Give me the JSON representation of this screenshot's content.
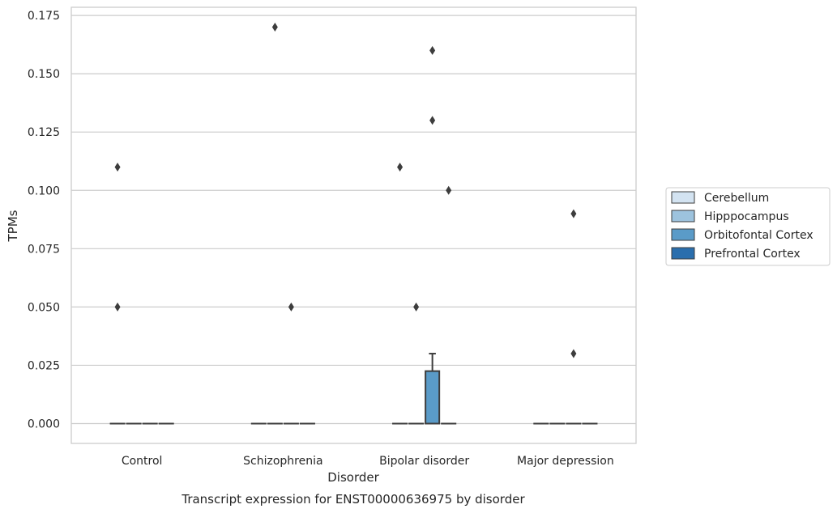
{
  "chart_data": {
    "type": "box",
    "title": "",
    "xlabel": "Disorder",
    "ylabel": "TPMs",
    "caption": "Transcript expression for ENST00000636975 by disorder",
    "categories": [
      "Control",
      "Schizophrenia",
      "Bipolar disorder",
      "Major depression"
    ],
    "y_ticks": [
      0.0,
      0.025,
      0.05,
      0.075,
      0.1,
      0.125,
      0.15,
      0.175
    ],
    "y_tick_labels": [
      "0.000",
      "0.025",
      "0.050",
      "0.075",
      "0.100",
      "0.125",
      "0.150",
      "0.175"
    ],
    "ylim": [
      -0.0085,
      0.1785
    ],
    "grid": "horizontal",
    "legend_position": "right",
    "series": [
      {
        "name": "Cerebellum",
        "color": "#d3e3f1",
        "boxes": [
          {
            "q1": 0,
            "median": 0,
            "q3": 0,
            "whisker_low": 0,
            "whisker_high": 0,
            "outliers": [
              0.11,
              0.05
            ]
          },
          {
            "q1": 0,
            "median": 0,
            "q3": 0,
            "whisker_low": 0,
            "whisker_high": 0,
            "outliers": []
          },
          {
            "q1": 0,
            "median": 0,
            "q3": 0,
            "whisker_low": 0,
            "whisker_high": 0,
            "outliers": [
              0.11
            ]
          },
          {
            "q1": 0,
            "median": 0,
            "q3": 0,
            "whisker_low": 0,
            "whisker_high": 0,
            "outliers": []
          }
        ]
      },
      {
        "name": "Hipppocampus",
        "color": "#9dc3de",
        "boxes": [
          {
            "q1": 0,
            "median": 0,
            "q3": 0,
            "whisker_low": 0,
            "whisker_high": 0,
            "outliers": []
          },
          {
            "q1": 0,
            "median": 0,
            "q3": 0,
            "whisker_low": 0,
            "whisker_high": 0,
            "outliers": [
              0.17
            ]
          },
          {
            "q1": 0,
            "median": 0,
            "q3": 0,
            "whisker_low": 0,
            "whisker_high": 0,
            "outliers": [
              0.05
            ]
          },
          {
            "q1": 0,
            "median": 0,
            "q3": 0,
            "whisker_low": 0,
            "whisker_high": 0,
            "outliers": []
          }
        ]
      },
      {
        "name": "Orbitofontal Cortex",
        "color": "#5a9bc8",
        "boxes": [
          {
            "q1": 0,
            "median": 0,
            "q3": 0,
            "whisker_low": 0,
            "whisker_high": 0,
            "outliers": []
          },
          {
            "q1": 0,
            "median": 0,
            "q3": 0,
            "whisker_low": 0,
            "whisker_high": 0,
            "outliers": [
              0.05
            ]
          },
          {
            "q1": 0,
            "median": 0,
            "q3": 0.0225,
            "whisker_low": 0,
            "whisker_high": 0.03,
            "outliers": [
              0.16,
              0.13
            ]
          },
          {
            "q1": 0,
            "median": 0,
            "q3": 0,
            "whisker_low": 0,
            "whisker_high": 0,
            "outliers": [
              0.09,
              0.03
            ]
          }
        ]
      },
      {
        "name": "Prefrontal Cortex",
        "color": "#2a6ead",
        "boxes": [
          {
            "q1": 0,
            "median": 0,
            "q3": 0,
            "whisker_low": 0,
            "whisker_high": 0,
            "outliers": []
          },
          {
            "q1": 0,
            "median": 0,
            "q3": 0,
            "whisker_low": 0,
            "whisker_high": 0,
            "outliers": []
          },
          {
            "q1": 0,
            "median": 0,
            "q3": 0,
            "whisker_low": 0,
            "whisker_high": 0,
            "outliers": [
              0.1
            ]
          },
          {
            "q1": 0,
            "median": 0,
            "q3": 0,
            "whisker_low": 0,
            "whisker_high": 0,
            "outliers": []
          }
        ]
      }
    ]
  }
}
